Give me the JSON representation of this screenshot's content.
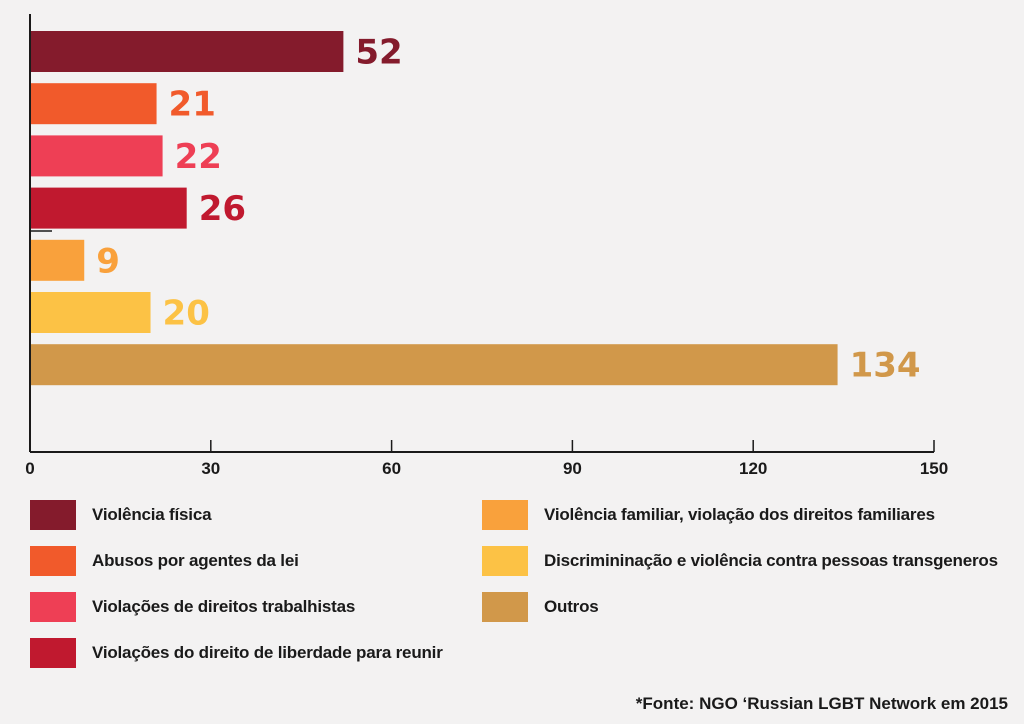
{
  "chart_data": {
    "type": "bar",
    "orientation": "horizontal",
    "categories": [
      "Violência física",
      "Abusos por agentes da lei",
      "Violações de direitos trabalhistas",
      "Violações do direito de liberdade para reunir",
      "Violência familiar, violação dos direitos familiares",
      "Discrimininação e violência contra pessoas transgeneros",
      "Outros"
    ],
    "values": [
      52,
      21,
      22,
      26,
      9,
      20,
      134
    ],
    "colors": [
      "#841b2c",
      "#f15a2b",
      "#ee3f55",
      "#c0192f",
      "#f9a13c",
      "#fcc245",
      "#d1984a"
    ],
    "xlim": [
      0,
      150
    ],
    "xticks": [
      "0",
      "30",
      "60",
      "90",
      "120",
      "150"
    ],
    "legend_position": "bottom",
    "grid": false,
    "source": "*Fonte: NGO ‘Russian LGBT Network em 2015"
  }
}
